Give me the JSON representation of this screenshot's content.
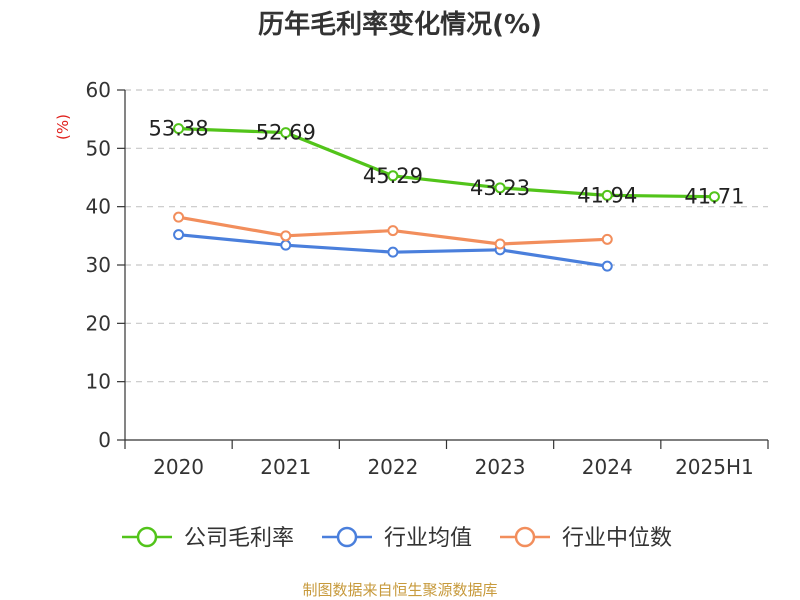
{
  "chart_data": {
    "type": "line",
    "title": "历年毛利率变化情况(%)",
    "ylabel": "(%)",
    "categories": [
      "2020",
      "2021",
      "2022",
      "2023",
      "2024",
      "2025H1"
    ],
    "ylim": [
      0,
      60
    ],
    "yticks": [
      0,
      10,
      20,
      30,
      40,
      50,
      60
    ],
    "grid": true,
    "legend_position": "bottom",
    "series": [
      {
        "name": "公司毛利率",
        "color": "#52c41a",
        "values": [
          53.38,
          52.69,
          45.29,
          43.23,
          41.94,
          41.71
        ],
        "labels": [
          "53.38",
          "52.69",
          "45.29",
          "43.23",
          "41.94",
          "41.71"
        ]
      },
      {
        "name": "行业均值",
        "color": "#4a7fdc",
        "values": [
          35.2,
          33.4,
          32.2,
          32.6,
          29.8,
          null
        ]
      },
      {
        "name": "行业中位数",
        "color": "#f28e5c",
        "values": [
          38.2,
          35.0,
          35.9,
          33.6,
          34.4,
          null
        ]
      }
    ]
  },
  "footer": "制图数据来自恒生聚源数据库"
}
